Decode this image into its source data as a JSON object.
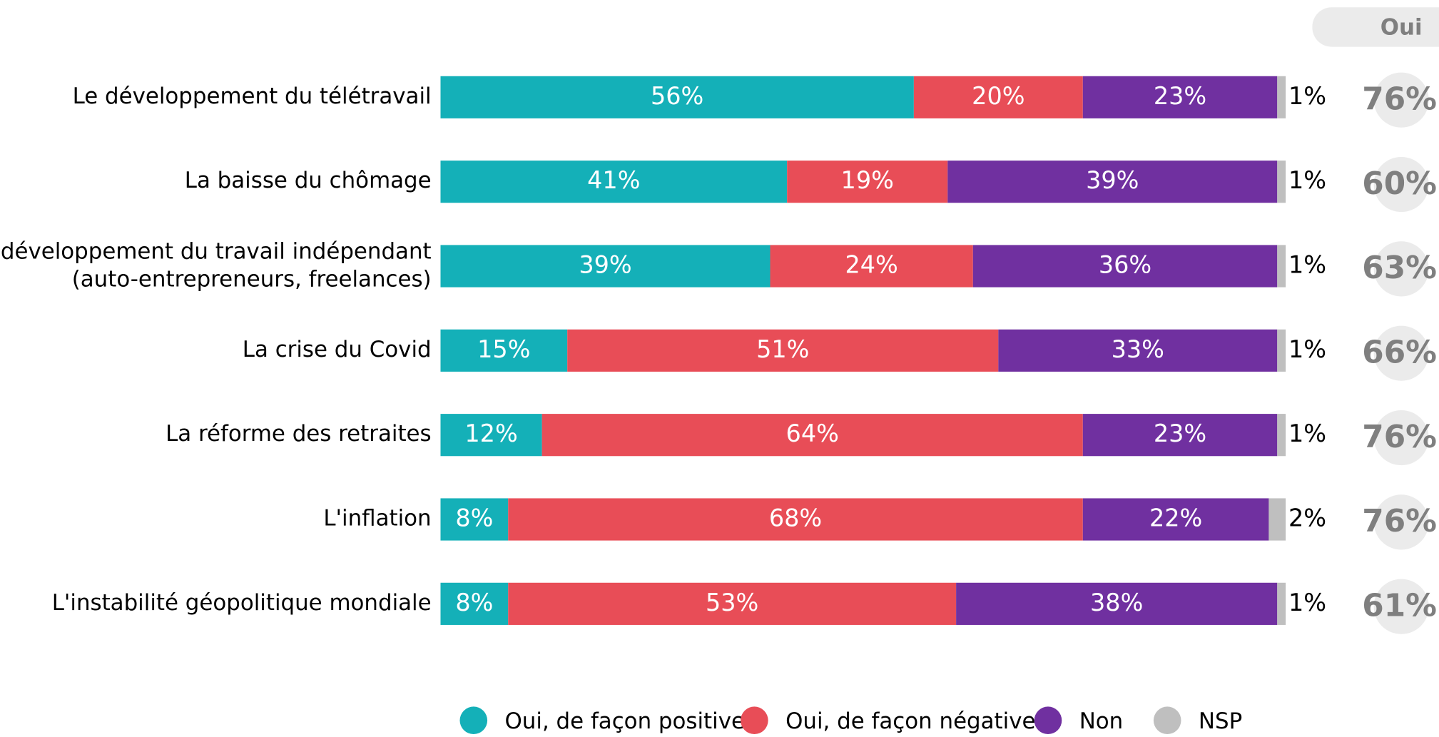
{
  "chart_data": {
    "type": "stacked-bar",
    "orientation": "horizontal",
    "categories": [
      "Le développement du télétravail",
      "La baisse du chômage",
      "Le développement du travail indépendant\n(auto-entrepreneurs, freelances)",
      "La crise du Covid",
      "La réforme des retraites",
      "L'inflation",
      "L'instabilité géopolitique mondiale"
    ],
    "xlim": [
      0,
      100
    ],
    "legend": "bottom",
    "series": [
      {
        "name": "Oui, de façon positive",
        "color": "#14b0b8",
        "values": [
          56,
          41,
          39,
          15,
          12,
          8,
          8
        ],
        "value_labels": [
          "56%",
          "41%",
          "39%",
          "15%",
          "12%",
          "8%",
          "8%"
        ]
      },
      {
        "name": "Oui, de façon négative",
        "color": "#e84d57",
        "values": [
          20,
          19,
          24,
          51,
          64,
          68,
          53
        ],
        "value_labels": [
          "20%",
          "19%",
          "24%",
          "51%",
          "64%",
          "68%",
          "53%"
        ]
      },
      {
        "name": "Non",
        "color": "#7030a0",
        "values": [
          23,
          39,
          36,
          33,
          23,
          22,
          38
        ],
        "value_labels": [
          "23%",
          "39%",
          "36%",
          "33%",
          "23%",
          "22%",
          "38%"
        ]
      },
      {
        "name": "NSP",
        "color": "#bfbfbf",
        "values": [
          1,
          1,
          1,
          1,
          1,
          2,
          1
        ],
        "value_labels": [
          "1%",
          "1%",
          "1%",
          "1%",
          "1%",
          "2%",
          "1%"
        ]
      }
    ],
    "totals": {
      "title": "Oui",
      "values": [
        76,
        60,
        63,
        66,
        76,
        76,
        61
      ],
      "value_labels": [
        "76%",
        "60%",
        "63%",
        "66%",
        "76%",
        "76%",
        "61%"
      ]
    }
  }
}
